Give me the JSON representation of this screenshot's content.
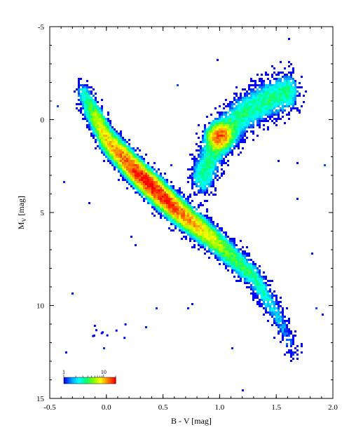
{
  "chart_data": {
    "type": "heatmap",
    "title": "",
    "xlabel": "B - V [mag]",
    "ylabel_main": "M",
    "ylabel_sub": "V",
    "ylabel_unit": " [mag]",
    "xlim": [
      -0.5,
      2.0
    ],
    "ylim": [
      -5,
      15
    ],
    "y_inverted": true,
    "x_ticks": [
      -0.5,
      0.0,
      0.5,
      1.0,
      1.5,
      2.0
    ],
    "x_tick_labels": [
      "-0.5",
      "0.0",
      "0.5",
      "1.0",
      "1.5",
      "2.0"
    ],
    "y_ticks": [
      -5,
      0,
      5,
      10,
      15
    ],
    "y_tick_labels": [
      "-5",
      "0",
      "5",
      "10",
      "15"
    ],
    "grid": false,
    "colorbar": {
      "scale": "log",
      "range": [
        1,
        20
      ],
      "labels": [
        "1",
        "10"
      ],
      "placement": "bottom-left",
      "colors": [
        "#0000ff",
        "#00a0ff",
        "#00ffff",
        "#00ff80",
        "#80ff00",
        "#ffff00",
        "#ff8000",
        "#ff0000"
      ]
    },
    "density_components": [
      {
        "feature": "main sequence",
        "path_bv": [
          -0.2,
          0.0,
          0.3,
          0.6,
          1.0,
          1.3,
          1.5,
          1.65
        ],
        "path_mv": [
          -1.5,
          1.0,
          3.0,
          4.8,
          6.8,
          8.5,
          10.5,
          12.5
        ],
        "peak_density": 20
      },
      {
        "feature": "red giant branch",
        "path_bv": [
          0.85,
          1.0,
          1.2,
          1.4,
          1.6
        ],
        "path_mv": [
          3.0,
          1.0,
          -0.3,
          -1.0,
          -1.5
        ],
        "peak_density": 10
      },
      {
        "feature": "red clump",
        "center_bv": 1.0,
        "center_mv": 0.9,
        "peak_density": 12
      },
      {
        "feature": "white dwarfs",
        "center_bv": 0.0,
        "center_mv": 11.5,
        "peak_density": 1
      }
    ]
  }
}
